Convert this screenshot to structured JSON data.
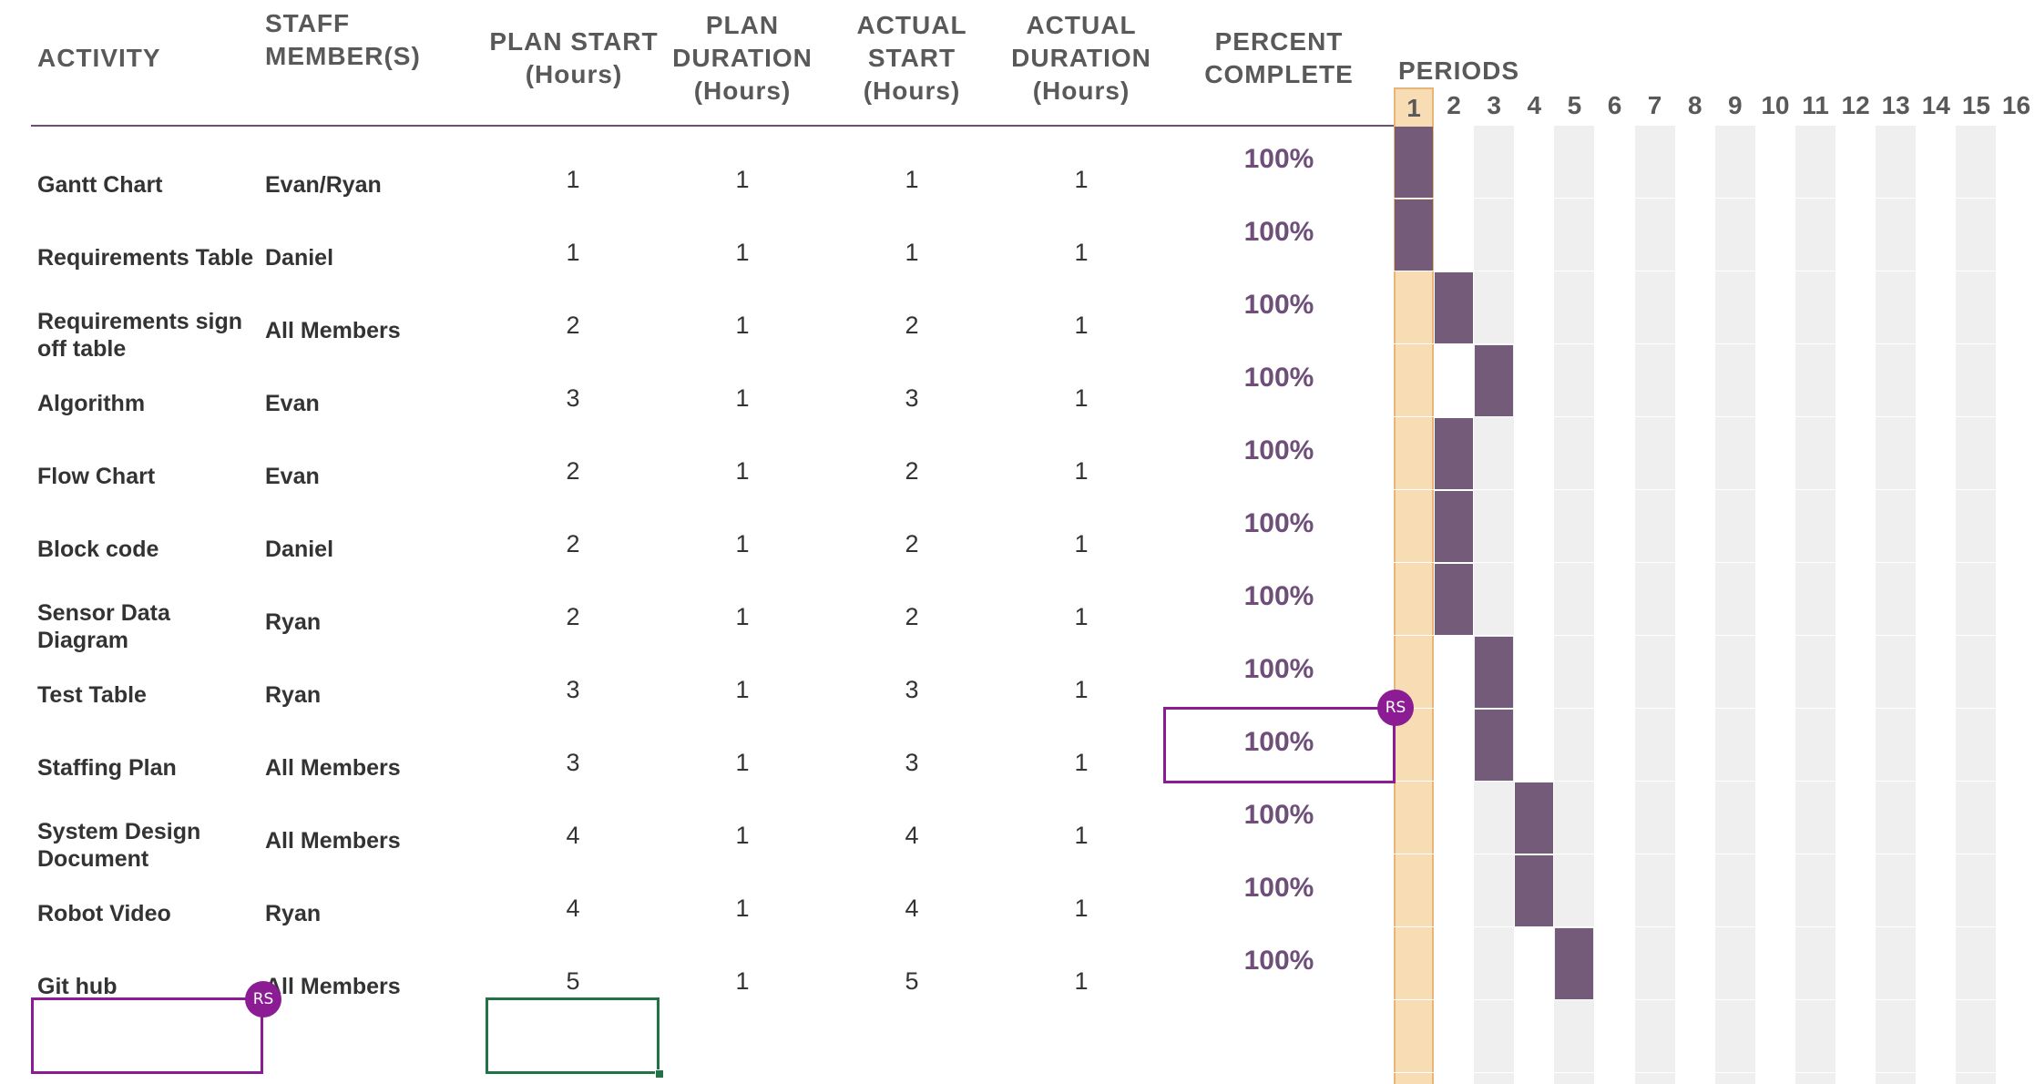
{
  "headers": {
    "activity": "ACTIVITY",
    "staff": "STAFF\nMEMBER(S)",
    "plan_start": "PLAN START\n(Hours)",
    "plan_duration": "PLAN\nDURATION\n(Hours)",
    "actual_start": "ACTUAL\nSTART\n(Hours)",
    "actual_duration": "ACTUAL\nDURATION\n(Hours)",
    "percent_complete": "PERCENT\nCOMPLETE",
    "periods": "PERIODS"
  },
  "periods": [
    "1",
    "2",
    "3",
    "4",
    "5",
    "6",
    "7",
    "8",
    "9",
    "10",
    "11",
    "12",
    "13",
    "14",
    "15",
    "16"
  ],
  "highlighted_period": 1,
  "rows": [
    {
      "activity": "Gantt Chart",
      "staff": "Evan/Ryan",
      "plan_start": "1",
      "plan_duration": "1",
      "actual_start": "1",
      "actual_duration": "1",
      "percent": "100%"
    },
    {
      "activity": "Requirements Table",
      "staff": "Daniel",
      "plan_start": "1",
      "plan_duration": "1",
      "actual_start": "1",
      "actual_duration": "1",
      "percent": "100%"
    },
    {
      "activity": "Requirements sign\noff table",
      "staff": "All Members",
      "plan_start": "2",
      "plan_duration": "1",
      "actual_start": "2",
      "actual_duration": "1",
      "percent": "100%"
    },
    {
      "activity": "Algorithm",
      "staff": "Evan",
      "plan_start": "3",
      "plan_duration": "1",
      "actual_start": "3",
      "actual_duration": "1",
      "percent": "100%"
    },
    {
      "activity": "Flow Chart",
      "staff": "Evan",
      "plan_start": "2",
      "plan_duration": "1",
      "actual_start": "2",
      "actual_duration": "1",
      "percent": "100%"
    },
    {
      "activity": "Block code",
      "staff": "Daniel",
      "plan_start": "2",
      "plan_duration": "1",
      "actual_start": "2",
      "actual_duration": "1",
      "percent": "100%"
    },
    {
      "activity": "Sensor Data\nDiagram",
      "staff": "Ryan",
      "plan_start": "2",
      "plan_duration": "1",
      "actual_start": "2",
      "actual_duration": "1",
      "percent": "100%"
    },
    {
      "activity": "Test Table",
      "staff": "Ryan",
      "plan_start": "3",
      "plan_duration": "1",
      "actual_start": "3",
      "actual_duration": "1",
      "percent": "100%"
    },
    {
      "activity": "Staffing Plan",
      "staff": "All Members",
      "plan_start": "3",
      "plan_duration": "1",
      "actual_start": "3",
      "actual_duration": "1",
      "percent": "100%"
    },
    {
      "activity": "System Design\nDocument",
      "staff": "All Members",
      "plan_start": "4",
      "plan_duration": "1",
      "actual_start": "4",
      "actual_duration": "1",
      "percent": "100%"
    },
    {
      "activity": "Robot Video",
      "staff": "Ryan",
      "plan_start": "4",
      "plan_duration": "1",
      "actual_start": "4",
      "actual_duration": "1",
      "percent": "100%"
    },
    {
      "activity": "Git hub",
      "staff": "All Members",
      "plan_start": "5",
      "plan_duration": "1",
      "actual_start": "5",
      "actual_duration": "1",
      "percent": "100%"
    }
  ],
  "collaborators": [
    {
      "initials": "RS",
      "color": "#8b1c93"
    },
    {
      "initials": "RS",
      "color": "#8b1c93"
    }
  ],
  "colors": {
    "bar": "#735b79",
    "highlight_column": "#f7dcb4",
    "shaded_column": "#efefef",
    "percent_text": "#6f4f7a",
    "selection_purple": "#8b1c93",
    "selection_green": "#217346"
  }
}
